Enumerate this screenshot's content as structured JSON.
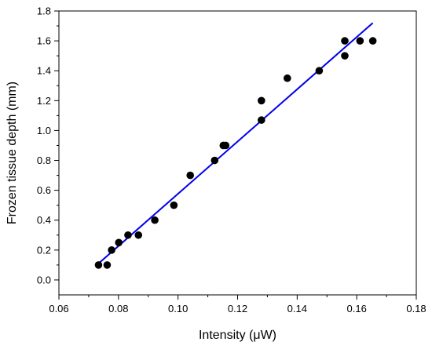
{
  "chart_data": {
    "type": "scatter",
    "xlabel": "Intensity (μW)",
    "ylabel": "Frozen tissue depth (mm)",
    "xlim": [
      0.06,
      0.18
    ],
    "ylim": [
      -0.1,
      1.8
    ],
    "x_ticks": [
      "0.06",
      "0.08",
      "0.10",
      "0.12",
      "0.14",
      "0.16",
      "0.18"
    ],
    "y_ticks": [
      "0.0",
      "0.2",
      "0.4",
      "0.6",
      "0.8",
      "1.0",
      "1.2",
      "1.4",
      "1.6",
      "1.8"
    ],
    "grid": false,
    "series": [
      {
        "points": [
          [
            0.0733,
            0.1
          ],
          [
            0.0762,
            0.1
          ],
          [
            0.0777,
            0.2
          ],
          [
            0.0801,
            0.25
          ],
          [
            0.0832,
            0.3
          ],
          [
            0.0867,
            0.3
          ],
          [
            0.0922,
            0.4
          ],
          [
            0.0986,
            0.5
          ],
          [
            0.1041,
            0.7
          ],
          [
            0.1123,
            0.8
          ],
          [
            0.1152,
            0.9
          ],
          [
            0.116,
            0.9
          ],
          [
            0.128,
            1.2
          ],
          [
            0.128,
            1.07
          ],
          [
            0.1367,
            1.35
          ],
          [
            0.1474,
            1.4
          ],
          [
            0.156,
            1.6
          ],
          [
            0.156,
            1.5
          ],
          [
            0.1611,
            1.6
          ],
          [
            0.1654,
            1.6
          ]
        ],
        "color": "#000000"
      },
      {
        "type": "line",
        "points": [
          [
            0.0733,
            0.11
          ],
          [
            0.1654,
            1.72
          ]
        ],
        "color": "#0000ee"
      }
    ]
  }
}
